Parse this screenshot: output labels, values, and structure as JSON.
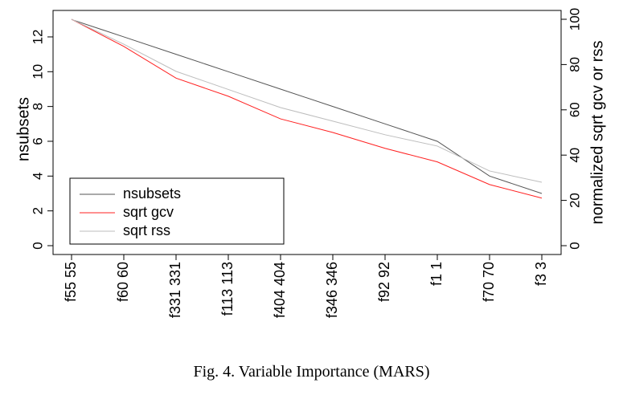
{
  "caption": "Fig. 4.   Variable Importance (MARS)",
  "chart_data": {
    "type": "line",
    "categories": [
      "f55 55",
      "f60 60",
      "f331 331",
      "f113 113",
      "f404 404",
      "f346 346",
      "f92 92",
      "f1 1",
      "f70 70",
      "f3 3"
    ],
    "left_axis": {
      "label": "nsubsets",
      "ticks": [
        0,
        2,
        4,
        6,
        8,
        10,
        12
      ],
      "range": [
        0,
        13
      ]
    },
    "right_axis": {
      "label": "normalized sqrt gcv or rss",
      "ticks": [
        0,
        20,
        40,
        60,
        80,
        100
      ],
      "range": [
        0,
        100
      ]
    },
    "series": [
      {
        "name": "nsubsets",
        "axis": "left",
        "color": "#555555",
        "values": [
          13,
          12,
          11,
          10,
          9,
          8,
          7,
          6,
          4,
          3
        ]
      },
      {
        "name": "sqrt gcv",
        "axis": "right",
        "color": "#ff2020",
        "values": [
          100,
          88,
          74,
          66,
          56,
          50,
          43,
          37,
          27,
          21
        ]
      },
      {
        "name": "sqrt rss",
        "axis": "right",
        "color": "#bdbdbd",
        "values": [
          100,
          89,
          77,
          69,
          61,
          55,
          49,
          44,
          33,
          28
        ]
      }
    ],
    "legend": {
      "position": "bottom-left"
    },
    "grid": false
  }
}
